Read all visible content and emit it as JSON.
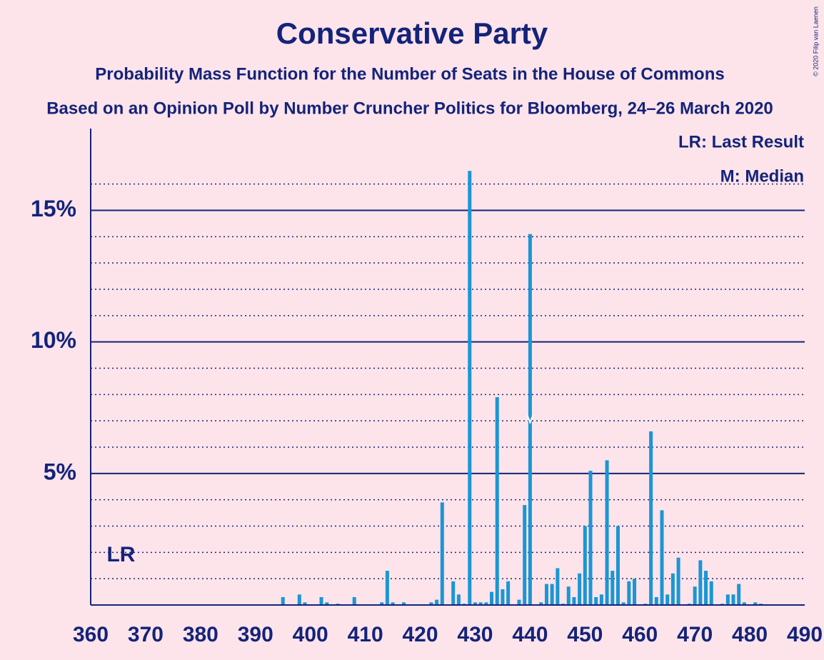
{
  "chart_data": {
    "type": "bar",
    "title": "Conservative Party",
    "subtitle": "Probability Mass Function for the Number of Seats in the House of Commons",
    "subtitle2": "Based on an Opinion Poll by Number Cruncher Politics for Bloomberg, 24–26 March 2020",
    "credit": "© 2020 Filip van Laenen",
    "legend": [
      "LR: Last Result",
      "M: Median"
    ],
    "lr_label": "LR",
    "last_result": 365,
    "median": 440,
    "color": "#1a96d4",
    "x": [
      395,
      398,
      399,
      402,
      403,
      405,
      408,
      413,
      414,
      415,
      417,
      422,
      423,
      424,
      426,
      427,
      428,
      429,
      430,
      431,
      432,
      433,
      434,
      435,
      436,
      438,
      439,
      440,
      442,
      443,
      444,
      445,
      446,
      447,
      448,
      449,
      450,
      451,
      452,
      453,
      454,
      455,
      456,
      457,
      458,
      459,
      461,
      462,
      463,
      464,
      465,
      466,
      467,
      469,
      470,
      471,
      472,
      473,
      475,
      476,
      477,
      478,
      479,
      481,
      482
    ],
    "values": [
      0.3,
      0.4,
      0.1,
      0.3,
      0.1,
      0.05,
      0.3,
      0.1,
      1.3,
      0.1,
      0.1,
      0.1,
      0.2,
      3.9,
      0.9,
      0.4,
      0.05,
      16.5,
      0.1,
      0.1,
      0.1,
      0.5,
      7.9,
      0.6,
      0.9,
      0.2,
      3.8,
      14.1,
      0.1,
      0.8,
      0.8,
      1.4,
      0.05,
      0.7,
      0.3,
      1.2,
      3.0,
      5.1,
      0.3,
      0.4,
      5.5,
      1.3,
      3.0,
      0.1,
      0.9,
      1.0,
      0.05,
      6.6,
      0.3,
      3.6,
      0.4,
      1.2,
      1.8,
      0.05,
      0.7,
      1.7,
      1.3,
      0.9,
      0.05,
      0.4,
      0.4,
      0.8,
      0.1,
      0.1,
      0.05
    ],
    "xlim": [
      360,
      490
    ],
    "xticks": [
      360,
      370,
      380,
      390,
      400,
      410,
      420,
      430,
      440,
      450,
      460,
      470,
      480,
      490
    ],
    "ylim": [
      0,
      18
    ],
    "yticks": [
      {
        "value": 5,
        "label": "5%"
      },
      {
        "value": 10,
        "label": "10%"
      },
      {
        "value": 15,
        "label": "15%"
      }
    ],
    "minor_yticks": [
      1,
      2,
      3,
      4,
      6,
      7,
      8,
      9,
      11,
      12,
      13,
      14,
      16
    ]
  }
}
